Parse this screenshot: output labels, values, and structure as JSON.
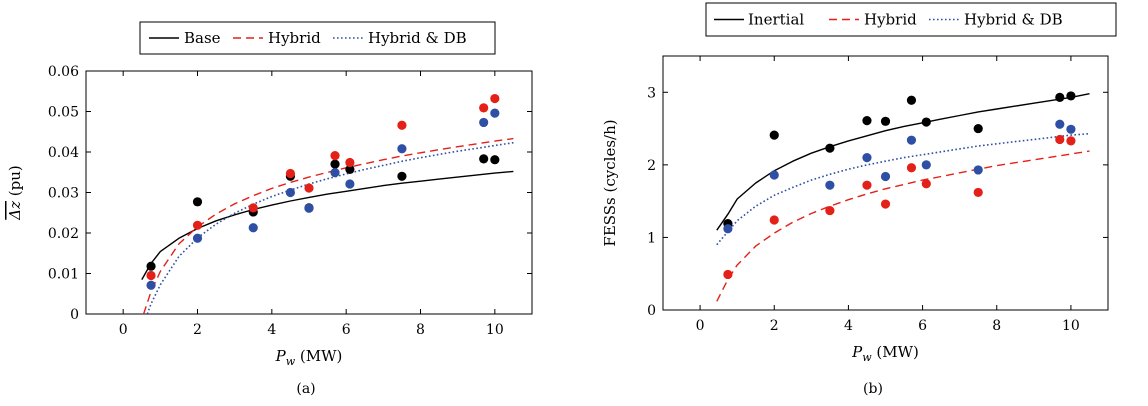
{
  "chart_data": [
    {
      "type": "scatter",
      "caption": "(a)",
      "xlabel_var": "P",
      "xlabel_sub": "w",
      "xlabel_unit": "(MW)",
      "ylabel_var": "Δz",
      "ylabel_unit": "(pu)",
      "xlim": [
        -1,
        11
      ],
      "ylim": [
        0,
        0.06
      ],
      "xticks": [
        0,
        2,
        4,
        6,
        8,
        10
      ],
      "yticks": [
        0,
        0.01,
        0.02,
        0.03,
        0.04,
        0.05,
        0.06
      ],
      "ytick_labels": [
        "0",
        "0.01",
        "0.02",
        "0.03",
        "0.04",
        "0.05",
        "0.06"
      ],
      "grid": false,
      "legend_position": "top",
      "series": [
        {
          "name": "Base",
          "color": "#000000",
          "line_style": "solid",
          "fit_x": [
            0.5,
            0.75,
            1,
            1.5,
            2,
            2.5,
            3,
            3.5,
            4,
            4.5,
            5,
            5.5,
            6,
            6.5,
            7,
            7.5,
            8,
            8.5,
            9,
            9.5,
            10,
            10.5
          ],
          "fit_y": [
            0.0085,
            0.0125,
            0.0154,
            0.0187,
            0.0211,
            0.023,
            0.0245,
            0.0258,
            0.0269,
            0.0279,
            0.0288,
            0.0296,
            0.0303,
            0.031,
            0.0317,
            0.0323,
            0.0328,
            0.0333,
            0.0338,
            0.0343,
            0.0348,
            0.0352
          ],
          "points_x": [
            0.75,
            2.0,
            3.5,
            4.5,
            5.0,
            5.7,
            6.1,
            7.5,
            9.7,
            10.0
          ],
          "points_y": [
            0.0118,
            0.0277,
            0.0252,
            0.034,
            0.0262,
            0.037,
            0.0357,
            0.034,
            0.0383,
            0.0381
          ]
        },
        {
          "name": "Hybrid",
          "color": "#e32119",
          "line_style": "dashed",
          "fit_x": [
            0.55,
            0.75,
            1,
            1.5,
            2,
            2.5,
            3,
            3.5,
            4,
            4.5,
            5,
            5.5,
            6,
            6.5,
            7,
            7.5,
            8,
            8.5,
            9,
            9.5,
            10,
            10.5
          ],
          "fit_y": [
            0.0,
            0.0055,
            0.0105,
            0.0173,
            0.0215,
            0.0247,
            0.0272,
            0.0292,
            0.031,
            0.0325,
            0.0338,
            0.035,
            0.0361,
            0.0371,
            0.0381,
            0.039,
            0.0398,
            0.0406,
            0.0413,
            0.042,
            0.0427,
            0.0433
          ],
          "points_x": [
            0.75,
            2.0,
            3.5,
            4.5,
            5.0,
            5.7,
            6.1,
            7.5,
            9.7,
            10.0
          ],
          "points_y": [
            0.0095,
            0.0219,
            0.0262,
            0.0347,
            0.0311,
            0.0391,
            0.0374,
            0.0466,
            0.0509,
            0.0532
          ]
        },
        {
          "name": "Hybrid & DB",
          "color": "#2e4fa3",
          "line_style": "dotted",
          "fit_x": [
            0.65,
            0.75,
            1,
            1.5,
            2,
            2.5,
            3,
            3.5,
            4,
            4.5,
            5,
            5.5,
            6,
            6.5,
            7,
            7.5,
            8,
            8.5,
            9,
            9.5,
            10,
            10.5
          ],
          "fit_y": [
            0.0,
            0.0025,
            0.0072,
            0.0142,
            0.0188,
            0.0222,
            0.0249,
            0.0271,
            0.029,
            0.0306,
            0.0321,
            0.0334,
            0.0346,
            0.0357,
            0.0367,
            0.0377,
            0.0386,
            0.0394,
            0.0402,
            0.0409,
            0.0416,
            0.0423
          ],
          "points_x": [
            0.75,
            2.0,
            3.5,
            4.5,
            5.0,
            5.7,
            6.1,
            7.5,
            9.7,
            10.0
          ],
          "points_y": [
            0.0071,
            0.0187,
            0.0213,
            0.03,
            0.0261,
            0.0349,
            0.0321,
            0.0408,
            0.0473,
            0.0496
          ]
        }
      ]
    },
    {
      "type": "scatter",
      "caption": "(b)",
      "xlabel_var": "P",
      "xlabel_sub": "w",
      "xlabel_unit": "(MW)",
      "ylabel": "FESSs (cycles/h)",
      "xlim": [
        -1,
        11
      ],
      "ylim": [
        0,
        3.5
      ],
      "xticks": [
        0,
        2,
        4,
        6,
        8,
        10
      ],
      "yticks": [
        0,
        1,
        2,
        3
      ],
      "ytick_labels": [
        "0",
        "1",
        "2",
        "3"
      ],
      "grid": false,
      "legend_position": "top",
      "series": [
        {
          "name": "Inertial",
          "color": "#000000",
          "line_style": "solid",
          "fit_x": [
            0.45,
            0.75,
            1,
            1.5,
            2,
            2.5,
            3,
            3.5,
            4,
            4.5,
            5,
            5.5,
            6,
            6.5,
            7,
            7.5,
            8,
            8.5,
            9,
            9.5,
            10,
            10.5
          ],
          "fit_y": [
            1.1,
            1.32,
            1.53,
            1.75,
            1.92,
            2.05,
            2.16,
            2.25,
            2.33,
            2.4,
            2.47,
            2.53,
            2.58,
            2.63,
            2.68,
            2.73,
            2.77,
            2.81,
            2.85,
            2.89,
            2.93,
            2.98
          ],
          "points_x": [
            0.75,
            2.0,
            3.5,
            4.5,
            5.0,
            5.7,
            6.1,
            7.5,
            9.7,
            10.0
          ],
          "points_y": [
            1.19,
            2.41,
            2.23,
            2.61,
            2.6,
            2.89,
            2.59,
            2.5,
            2.93,
            2.95
          ]
        },
        {
          "name": "Hybrid",
          "color": "#e32119",
          "line_style": "dashed",
          "fit_x": [
            0.45,
            0.75,
            1,
            1.5,
            2,
            2.5,
            3,
            3.5,
            4,
            4.5,
            5,
            5.5,
            6,
            6.5,
            7,
            7.5,
            8,
            8.5,
            9,
            9.5,
            10,
            10.5
          ],
          "fit_y": [
            0.12,
            0.42,
            0.62,
            0.88,
            1.06,
            1.21,
            1.33,
            1.43,
            1.52,
            1.6,
            1.67,
            1.73,
            1.79,
            1.84,
            1.89,
            1.94,
            1.99,
            2.03,
            2.07,
            2.11,
            2.15,
            2.19
          ],
          "points_x": [
            0.75,
            2.0,
            3.5,
            4.5,
            5.0,
            5.7,
            6.1,
            7.5,
            9.7,
            10.0
          ],
          "points_y": [
            0.49,
            1.24,
            1.37,
            1.72,
            1.46,
            1.96,
            1.74,
            1.62,
            2.35,
            2.33
          ]
        },
        {
          "name": "Hybrid & DB",
          "color": "#2e4fa3",
          "line_style": "dotted",
          "fit_x": [
            0.45,
            0.75,
            1,
            1.5,
            2,
            2.5,
            3,
            3.5,
            4,
            4.5,
            5,
            5.5,
            6,
            6.5,
            7,
            7.5,
            8,
            8.5,
            9,
            9.5,
            10,
            10.5
          ],
          "fit_y": [
            0.9,
            1.08,
            1.23,
            1.43,
            1.58,
            1.69,
            1.79,
            1.87,
            1.94,
            2.0,
            2.05,
            2.1,
            2.14,
            2.18,
            2.22,
            2.26,
            2.29,
            2.32,
            2.35,
            2.38,
            2.41,
            2.43
          ],
          "points_x": [
            0.75,
            2.0,
            3.5,
            4.5,
            5.0,
            5.7,
            6.1,
            7.5,
            9.7,
            10.0
          ],
          "points_y": [
            1.12,
            1.86,
            1.72,
            2.1,
            1.84,
            2.34,
            2.0,
            1.93,
            2.56,
            2.49
          ]
        }
      ]
    }
  ]
}
